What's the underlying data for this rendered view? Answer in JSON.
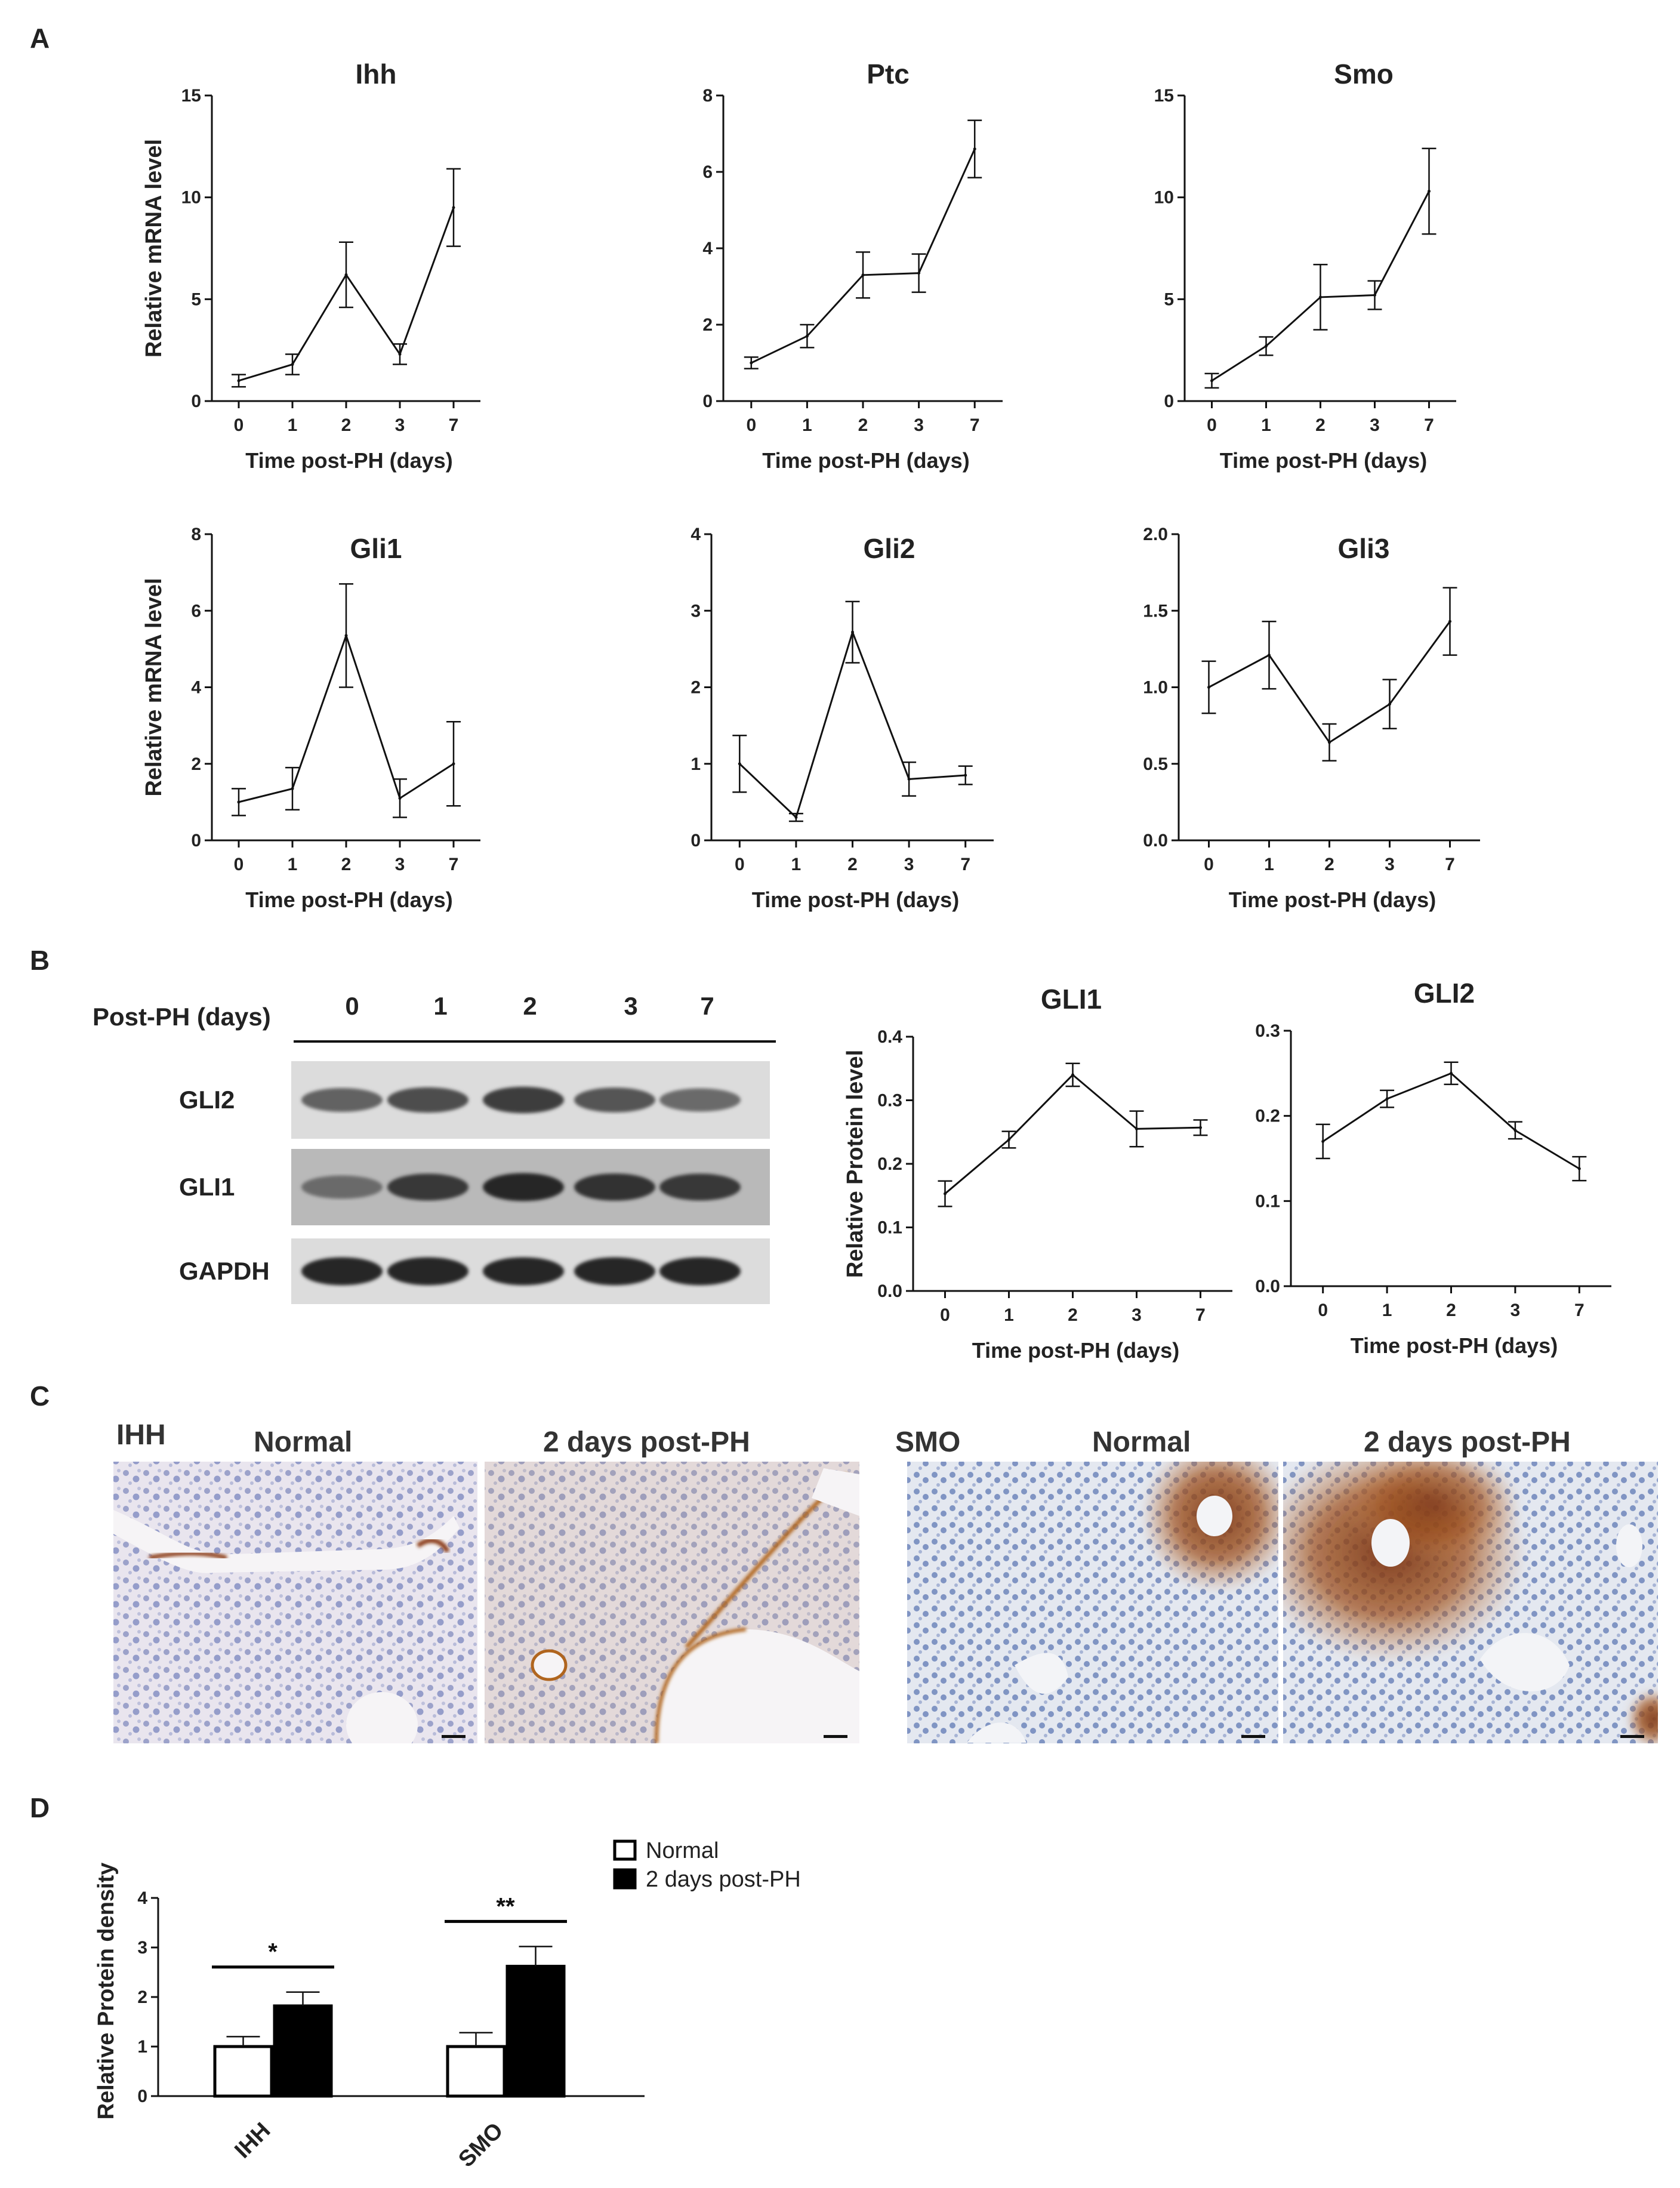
{
  "panels": {
    "a": "A",
    "b": "B",
    "c": "C",
    "d": "D"
  },
  "chart_data": [
    {
      "id": "ihh",
      "type": "line",
      "title": "Ihh",
      "xlabel": "Time post-PH (days)",
      "ylabel": "Relative mRNA level",
      "categories": [
        "0",
        "1",
        "2",
        "3",
        "7"
      ],
      "values": [
        1.0,
        1.8,
        6.2,
        2.3,
        9.5
      ],
      "errors": [
        0.3,
        0.5,
        1.6,
        0.5,
        1.9
      ],
      "ylim": [
        0,
        15
      ],
      "yticks": [
        0,
        5,
        10,
        15
      ]
    },
    {
      "id": "ptc",
      "type": "line",
      "title": "Ptc",
      "xlabel": "Time post-PH (days)",
      "ylabel": "",
      "categories": [
        "0",
        "1",
        "2",
        "3",
        "7"
      ],
      "values": [
        1.0,
        1.7,
        3.3,
        3.35,
        6.6
      ],
      "errors": [
        0.15,
        0.3,
        0.6,
        0.5,
        0.75
      ],
      "ylim": [
        0,
        8
      ],
      "yticks": [
        0,
        2,
        4,
        6,
        8
      ]
    },
    {
      "id": "smo",
      "type": "line",
      "title": "Smo",
      "xlabel": "Time post-PH (days)",
      "ylabel": "",
      "categories": [
        "0",
        "1",
        "2",
        "3",
        "7"
      ],
      "values": [
        1.0,
        2.7,
        5.1,
        5.2,
        10.3
      ],
      "errors": [
        0.35,
        0.45,
        1.6,
        0.7,
        2.1
      ],
      "ylim": [
        0,
        15
      ],
      "yticks": [
        0,
        5,
        10,
        15
      ]
    },
    {
      "id": "gli1",
      "type": "line",
      "title": "Gli1",
      "xlabel": "Time post-PH (days)",
      "ylabel": "Relative mRNA level",
      "categories": [
        "0",
        "1",
        "2",
        "3",
        "7"
      ],
      "values": [
        1.0,
        1.35,
        5.35,
        1.1,
        2.0
      ],
      "errors": [
        0.35,
        0.55,
        1.35,
        0.5,
        1.1
      ],
      "ylim": [
        0,
        8
      ],
      "yticks": [
        0,
        2,
        4,
        6,
        8
      ]
    },
    {
      "id": "gli2",
      "type": "line",
      "title": "Gli2",
      "xlabel": "Time post-PH (days)",
      "ylabel": "",
      "categories": [
        "0",
        "1",
        "2",
        "3",
        "7"
      ],
      "values": [
        1.0,
        0.3,
        2.72,
        0.8,
        0.85
      ],
      "errors": [
        0.37,
        0.05,
        0.4,
        0.22,
        0.12
      ],
      "ylim": [
        0,
        4
      ],
      "yticks": [
        0,
        1,
        2,
        3,
        4
      ]
    },
    {
      "id": "gli3",
      "type": "line",
      "title": "Gli3",
      "xlabel": "Time post-PH (days)",
      "ylabel": "",
      "categories": [
        "0",
        "1",
        "2",
        "3",
        "7"
      ],
      "values": [
        1.0,
        1.21,
        0.64,
        0.89,
        1.43
      ],
      "errors": [
        0.17,
        0.22,
        0.12,
        0.16,
        0.22
      ],
      "ylim": [
        0,
        2
      ],
      "yticks": [
        "0.0",
        "0.5",
        "1.0",
        "1.5",
        "2.0"
      ]
    },
    {
      "id": "gli1p",
      "type": "line",
      "title": "GLI1",
      "xlabel": "Time post-PH (days)",
      "ylabel": "Relative Protein level",
      "categories": [
        "0",
        "1",
        "2",
        "3",
        "7"
      ],
      "values": [
        0.153,
        0.238,
        0.34,
        0.255,
        0.257
      ],
      "errors": [
        0.02,
        0.013,
        0.018,
        0.028,
        0.012
      ],
      "ylim": [
        0,
        0.4
      ],
      "yticks": [
        "0.0",
        "0.1",
        "0.2",
        "0.3",
        "0.4"
      ]
    },
    {
      "id": "gli2p",
      "type": "line",
      "title": "GLI2",
      "xlabel": "Time post-PH (days)",
      "ylabel": "",
      "categories": [
        "0",
        "1",
        "2",
        "3",
        "7"
      ],
      "values": [
        0.17,
        0.22,
        0.25,
        0.183,
        0.138
      ],
      "errors": [
        0.02,
        0.01,
        0.013,
        0.01,
        0.014
      ],
      "ylim": [
        0,
        0.3
      ],
      "yticks": [
        "0.0",
        "0.1",
        "0.2",
        "0.3"
      ]
    },
    {
      "id": "density",
      "type": "bar",
      "title": "",
      "xlabel": "",
      "ylabel": "Relative Protein density",
      "categories": [
        "IHH",
        "SMO"
      ],
      "series": [
        {
          "name": "Normal",
          "values": [
            1.0,
            1.0
          ],
          "errors": [
            0.2,
            0.28
          ]
        },
        {
          "name": "2 days post-PH",
          "values": [
            1.82,
            2.62
          ],
          "errors": [
            0.28,
            0.4
          ]
        }
      ],
      "significance": [
        "*",
        "**"
      ],
      "ylim": [
        0,
        4
      ],
      "yticks": [
        0,
        1,
        2,
        3,
        4
      ],
      "legend": "top-right"
    }
  ],
  "blot": {
    "header_label": "Post-PH (days)",
    "lanes": [
      "0",
      "1",
      "2",
      "3",
      "7"
    ],
    "rows": [
      {
        "label": "GLI2",
        "intensity": [
          0.6,
          0.72,
          0.82,
          0.68,
          0.55
        ]
      },
      {
        "label": "GLI1",
        "intensity": [
          0.55,
          0.85,
          0.95,
          0.88,
          0.85
        ]
      },
      {
        "label": "GAPDH",
        "intensity": [
          0.95,
          0.95,
          0.95,
          0.95,
          0.95
        ]
      }
    ]
  },
  "micrographs": {
    "ihh_label": "IHH",
    "smo_label": "SMO",
    "normal_label": "Normal",
    "post_label": "2 days post-PH"
  },
  "colors": {
    "stain_hematoxylin": "#8e9ac8",
    "stain_dab": "#a0521e",
    "background": "#e9e6ef"
  }
}
